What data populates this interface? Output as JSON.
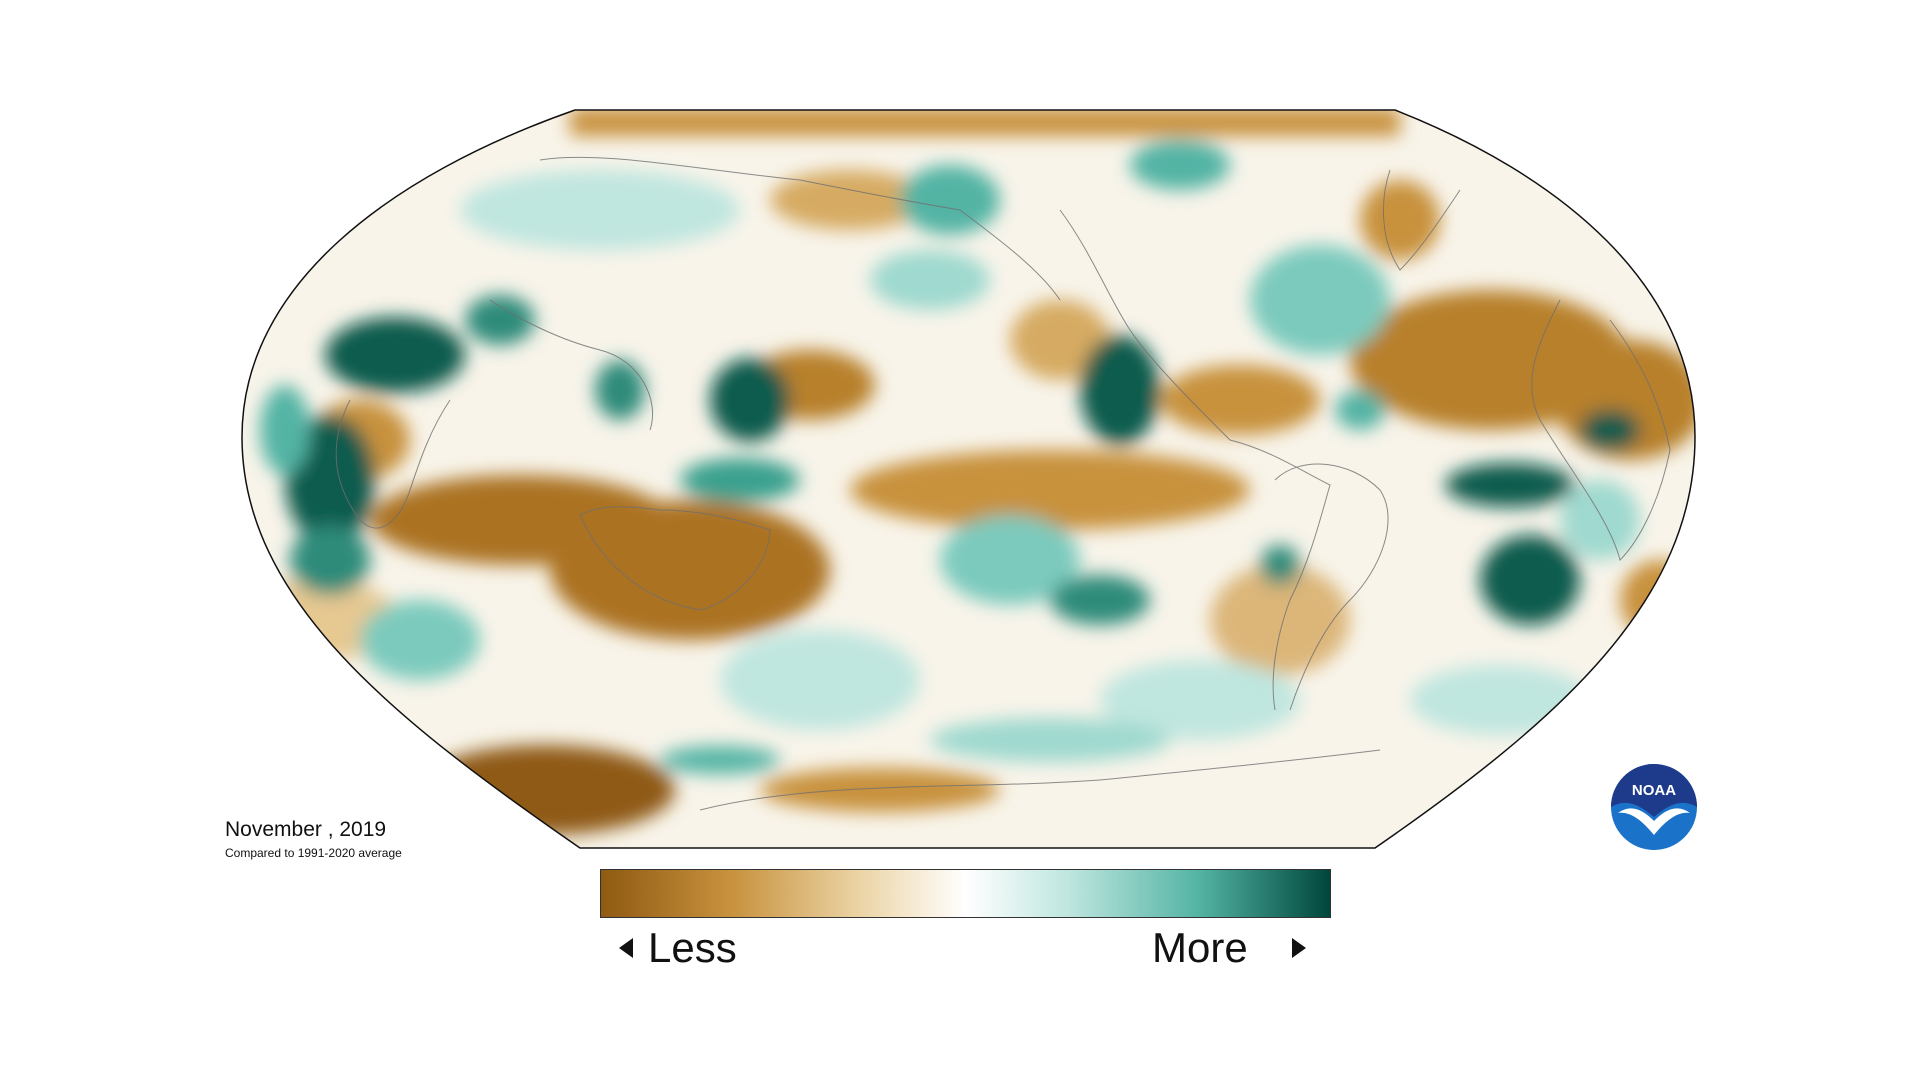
{
  "map": {
    "projection": "robinson",
    "center_meridian": "pacific",
    "color_scale": {
      "dry_dark": "#8f5a12",
      "dry_mid": "#c8923e",
      "dry_light": "#ecd6a8",
      "neutral": "#ffffff",
      "wet_light": "#bfe6df",
      "wet_mid": "#53b4a4",
      "wet_dark": "#00463c"
    }
  },
  "caption": {
    "date": "November , 2019",
    "subtitle": "Compared to 1991-2020 average"
  },
  "legend": {
    "less_label": "Less",
    "more_label": "More"
  },
  "logo": {
    "text": "NOAA",
    "icon": "noaa-logo",
    "colors": {
      "top": "#1e3a8a",
      "bottom": "#1a73c9"
    }
  }
}
